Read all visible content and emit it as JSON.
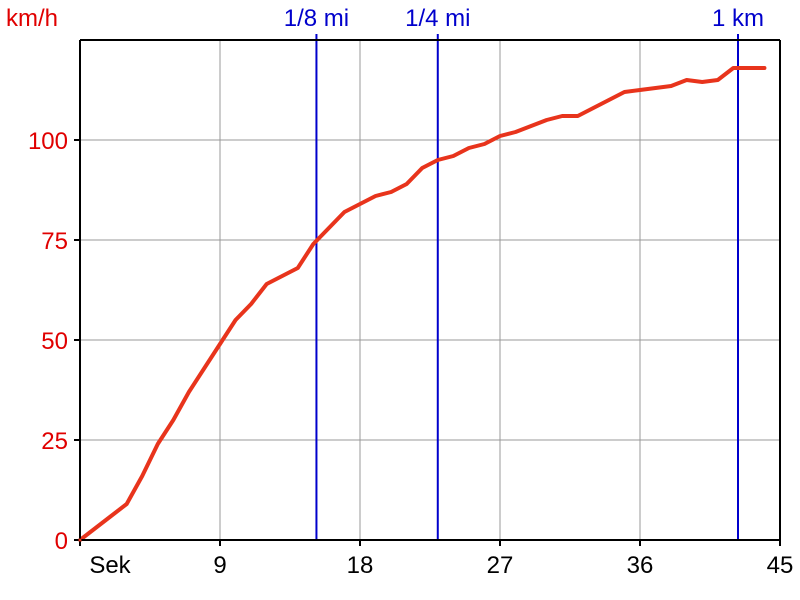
{
  "chart_data": {
    "type": "line",
    "title": "",
    "xlabel": "Sek",
    "ylabel": "km/h",
    "xlim": [
      0,
      45
    ],
    "ylim": [
      0,
      125
    ],
    "x_ticks": [
      "9",
      "18",
      "27",
      "36",
      "45"
    ],
    "y_ticks": [
      "0",
      "25",
      "50",
      "75",
      "100"
    ],
    "grid": true,
    "colors": {
      "series": "#e8341c",
      "axis_labels": "#e00000",
      "markers": "#0000cc",
      "grid": "#999999",
      "axis": "#000000"
    },
    "series": [
      {
        "x": [
          0,
          1,
          2,
          3,
          4,
          5,
          6,
          7,
          8,
          9,
          10,
          11,
          12,
          13,
          14,
          15,
          16,
          17,
          18,
          19,
          20,
          21,
          22,
          23,
          24,
          25,
          26,
          27,
          28,
          29,
          30,
          31,
          32,
          33,
          34,
          35,
          36,
          37,
          38,
          39,
          40,
          41,
          42,
          43,
          44
        ],
        "values": [
          0,
          3,
          6,
          9,
          16,
          24,
          30,
          37,
          43,
          49,
          55,
          59,
          64,
          66,
          68,
          74,
          78,
          82,
          84,
          86,
          87,
          89,
          93,
          95,
          96,
          98,
          99,
          101,
          102,
          103.5,
          105,
          106,
          106,
          108,
          110,
          112,
          112.5,
          113,
          113.5,
          115,
          114.5,
          115,
          118,
          118,
          118
        ]
      }
    ],
    "markers": [
      {
        "label": "1/8 mi",
        "x": 15.2
      },
      {
        "label": "1/4 mi",
        "x": 23
      },
      {
        "label": "1 km",
        "x": 42.3
      }
    ]
  }
}
